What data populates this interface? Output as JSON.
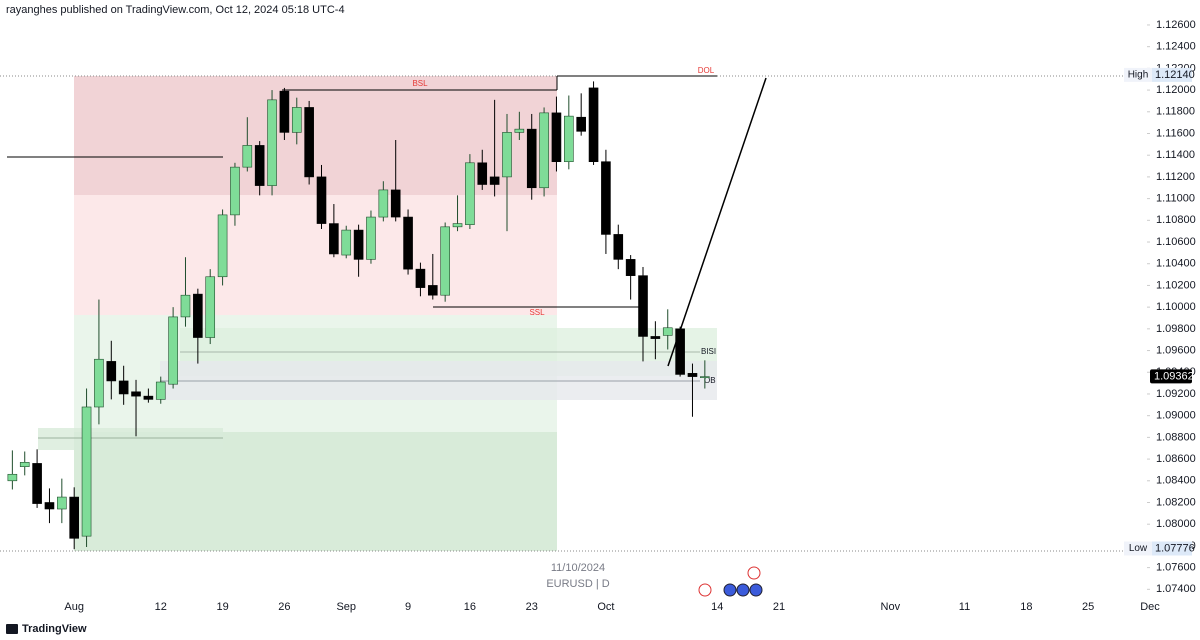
{
  "header": {
    "text": "rayanghes published on TradingView.com, Oct 12, 2024 05:18 UTC-4"
  },
  "chart_data": {
    "type": "candlestick",
    "symbol": "EURUSD | D",
    "date_watermark": "11/10/2024",
    "xlim": [
      "2024-07-24",
      "2024-12-02"
    ],
    "x": [
      "2024-07-25",
      "2024-07-26",
      "2024-07-29",
      "2024-07-30",
      "2024-07-31",
      "2024-08-01",
      "2024-08-02",
      "2024-08-05",
      "2024-08-06",
      "2024-08-07",
      "2024-08-08",
      "2024-08-09",
      "2024-08-12",
      "2024-08-13",
      "2024-08-14",
      "2024-08-15",
      "2024-08-16",
      "2024-08-19",
      "2024-08-20",
      "2024-08-21",
      "2024-08-22",
      "2024-08-23",
      "2024-08-26",
      "2024-08-27",
      "2024-08-28",
      "2024-08-29",
      "2024-08-30",
      "2024-09-02",
      "2024-09-03",
      "2024-09-04",
      "2024-09-05",
      "2024-09-06",
      "2024-09-09",
      "2024-09-10",
      "2024-09-11",
      "2024-09-12",
      "2024-09-13",
      "2024-09-16",
      "2024-09-17",
      "2024-09-18",
      "2024-09-19",
      "2024-09-20",
      "2024-09-23",
      "2024-09-24",
      "2024-09-25",
      "2024-09-26",
      "2024-09-27",
      "2024-09-30",
      "2024-10-01",
      "2024-10-02",
      "2024-10-03",
      "2024-10-04",
      "2024-10-07",
      "2024-10-08",
      "2024-10-09",
      "2024-10-10",
      "2024-10-11"
    ],
    "open": [
      1.084,
      1.0853,
      1.0856,
      1.082,
      1.0814,
      1.0825,
      1.0789,
      1.0908,
      1.095,
      1.0932,
      1.0922,
      1.0918,
      1.0915,
      1.0929,
      1.0991,
      1.1012,
      1.0972,
      1.1028,
      1.1085,
      1.1129,
      1.1149,
      1.1112,
      1.1199,
      1.1161,
      1.1184,
      1.112,
      1.1077,
      1.1048,
      1.1071,
      1.1044,
      1.1083,
      1.1108,
      1.1083,
      1.1035,
      1.102,
      1.1011,
      1.1074,
      1.1076,
      1.1133,
      1.112,
      1.112,
      1.1161,
      1.1164,
      1.111,
      1.1179,
      1.1134,
      1.1175,
      1.1202,
      1.1134,
      1.1067,
      1.1044,
      1.1029,
      1.0973,
      1.0974,
      1.098,
      1.0939,
      1.0935
    ],
    "high": [
      1.0868,
      1.0867,
      1.0869,
      1.0833,
      1.0842,
      1.0834,
      1.0925,
      1.1007,
      1.0969,
      1.0946,
      1.0933,
      1.0925,
      1.0936,
      1.1,
      1.1046,
      1.1017,
      1.1035,
      1.109,
      1.1133,
      1.1175,
      1.1153,
      1.12,
      1.1202,
      1.1193,
      1.119,
      1.1131,
      1.1095,
      1.1075,
      1.1076,
      1.1089,
      1.1116,
      1.1154,
      1.109,
      1.1041,
      1.1049,
      1.1078,
      1.1103,
      1.1141,
      1.1145,
      1.1191,
      1.1178,
      1.118,
      1.1178,
      1.1184,
      1.1194,
      1.1195,
      1.1197,
      1.1208,
      1.1145,
      1.1076,
      1.1048,
      1.1037,
      1.0987,
      1.0998,
      1.0982,
      1.0948,
      1.0951
    ],
    "low": [
      1.0832,
      1.0845,
      1.0815,
      1.0801,
      1.0801,
      1.0777,
      1.0779,
      1.0892,
      1.0915,
      1.091,
      1.0881,
      1.0912,
      1.0911,
      1.0925,
      1.0982,
      1.0948,
      1.0966,
      1.102,
      1.1075,
      1.1125,
      1.1103,
      1.1103,
      1.1154,
      1.115,
      1.1113,
      1.1072,
      1.1046,
      1.1045,
      1.1028,
      1.104,
      1.1079,
      1.1079,
      1.103,
      1.101,
      1.1007,
      1.1005,
      1.107,
      1.1072,
      1.1108,
      1.1102,
      1.107,
      1.1154,
      1.1099,
      1.1102,
      1.1125,
      1.1127,
      1.1158,
      1.1131,
      1.1049,
      1.1035,
      1.1007,
      1.095,
      1.0952,
      1.0961,
      1.0936,
      1.0899,
      1.0925
    ],
    "close": [
      1.0846,
      1.0857,
      1.0819,
      1.0814,
      1.0825,
      1.0787,
      1.0908,
      1.0952,
      1.0932,
      1.092,
      1.0918,
      1.0915,
      1.0931,
      1.0991,
      1.1011,
      1.0972,
      1.1028,
      1.1085,
      1.1129,
      1.1149,
      1.1112,
      1.1191,
      1.1161,
      1.1184,
      1.112,
      1.1077,
      1.1049,
      1.1071,
      1.1044,
      1.1083,
      1.1108,
      1.1083,
      1.1035,
      1.1018,
      1.1011,
      1.1074,
      1.1077,
      1.1133,
      1.1113,
      1.1113,
      1.1161,
      1.1164,
      1.111,
      1.1179,
      1.1134,
      1.1176,
      1.1162,
      1.1134,
      1.1067,
      1.1044,
      1.1029,
      1.0973,
      1.0971,
      1.0981,
      1.0938,
      1.0936,
      1.0936
    ],
    "up_color": "#7fdc98",
    "down_color": "#000000",
    "ylim": [
      1.0732,
      1.1283
    ],
    "yticks": [
      {
        "value": 1.074,
        "label": "1.07400"
      },
      {
        "value": 1.076,
        "label": "1.07600"
      },
      {
        "value": 1.078,
        "label": "1.07800"
      },
      {
        "value": 1.08,
        "label": "1.08000"
      },
      {
        "value": 1.082,
        "label": "1.08200"
      },
      {
        "value": 1.084,
        "label": "1.08400"
      },
      {
        "value": 1.086,
        "label": "1.08600"
      },
      {
        "value": 1.088,
        "label": "1.08800"
      },
      {
        "value": 1.09,
        "label": "1.09000"
      },
      {
        "value": 1.092,
        "label": "1.09200"
      },
      {
        "value": 1.094,
        "label": "1.09400"
      },
      {
        "value": 1.096,
        "label": "1.09600"
      },
      {
        "value": 1.098,
        "label": "1.09800"
      },
      {
        "value": 1.1,
        "label": "1.10000"
      },
      {
        "value": 1.102,
        "label": "1.10200"
      },
      {
        "value": 1.104,
        "label": "1.10400"
      },
      {
        "value": 1.106,
        "label": "1.10600"
      },
      {
        "value": 1.108,
        "label": "1.10800"
      },
      {
        "value": 1.11,
        "label": "1.11000"
      },
      {
        "value": 1.112,
        "label": "1.11200"
      },
      {
        "value": 1.114,
        "label": "1.11400"
      },
      {
        "value": 1.116,
        "label": "1.11600"
      },
      {
        "value": 1.118,
        "label": "1.11800"
      },
      {
        "value": 1.12,
        "label": "1.12000"
      },
      {
        "value": 1.122,
        "label": "1.12200"
      },
      {
        "value": 1.124,
        "label": "1.12400"
      },
      {
        "value": 1.126,
        "label": "1.12600"
      }
    ],
    "xticks": [
      {
        "value": "2024-08-01",
        "label": "Aug"
      },
      {
        "value": "2024-08-12",
        "label": "12"
      },
      {
        "value": "2024-08-19",
        "label": "19"
      },
      {
        "value": "2024-08-26",
        "label": "26"
      },
      {
        "value": "2024-09-02",
        "label": "Sep"
      },
      {
        "value": "2024-09-09",
        "label": "9"
      },
      {
        "value": "2024-09-16",
        "label": "16"
      },
      {
        "value": "2024-09-23",
        "label": "23"
      },
      {
        "value": "2024-10-01",
        "label": "Oct"
      },
      {
        "value": "2024-10-14",
        "label": "14"
      },
      {
        "value": "2024-10-21",
        "label": "21"
      },
      {
        "value": "2024-11-01",
        "label": "Nov"
      },
      {
        "value": "2024-11-11",
        "label": "11"
      },
      {
        "value": "2024-11-18",
        "label": "18"
      },
      {
        "value": "2024-11-25",
        "label": "25"
      },
      {
        "value": "2024-12-02",
        "label": "Dec"
      }
    ],
    "annotations": [
      "BSL",
      "DOL",
      "SSL",
      "BISI",
      "OB"
    ],
    "markers": [
      {
        "label": "High",
        "value": 1.1214,
        "value_label": "1.12140",
        "color": "#dde9f8"
      },
      {
        "label": "Low",
        "value": 1.07776,
        "value_label": "1.07776",
        "color": "#dde9f8"
      }
    ],
    "last_price": {
      "value": 1.09362,
      "value_label": "1.09362",
      "color": "#000000"
    }
  },
  "footer": {
    "brand": "TradingView"
  }
}
